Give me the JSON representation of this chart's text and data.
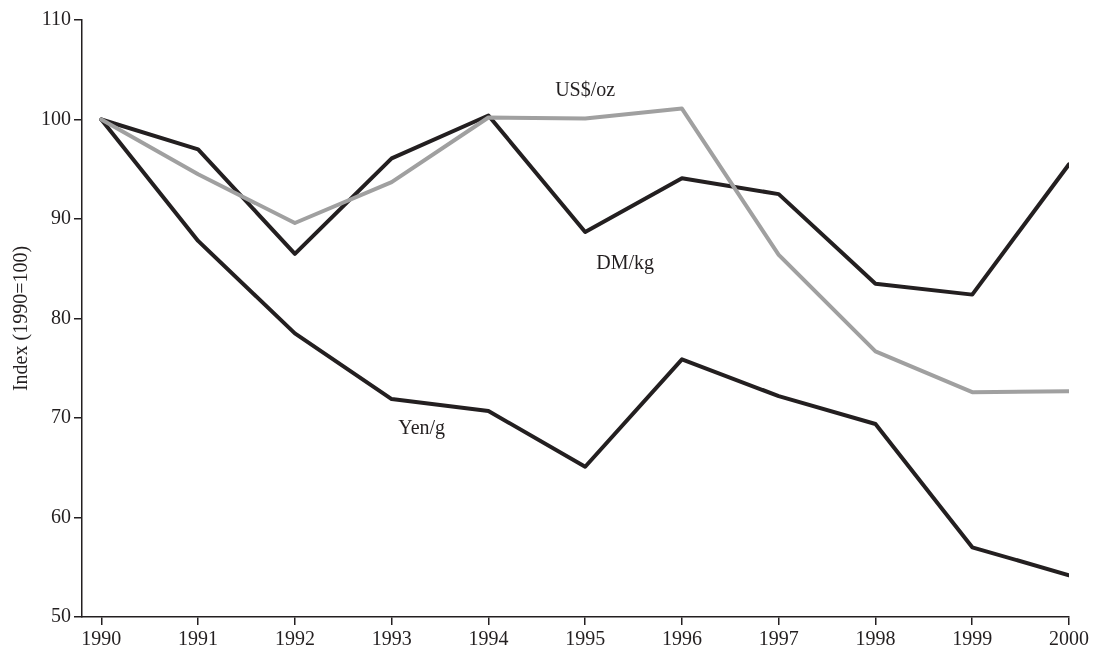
{
  "chart_data": {
    "type": "line",
    "ylabel": "Index (1990=100)",
    "x": [
      1990,
      1991,
      1992,
      1993,
      1994,
      1995,
      1996,
      1997,
      1998,
      1999,
      2000
    ],
    "series": [
      {
        "name": "US$/oz",
        "color": "#a0a0a0",
        "values": [
          100,
          94.5,
          89.6,
          93.7,
          100.2,
          100.1,
          101.1,
          86.4,
          76.7,
          72.6,
          72.7
        ]
      },
      {
        "name": "DM/kg",
        "color": "#231f20",
        "values": [
          100,
          97.0,
          86.5,
          96.1,
          100.4,
          88.7,
          94.1,
          92.5,
          83.5,
          82.4,
          95.5
        ]
      },
      {
        "name": "Yen/g",
        "color": "#231f20",
        "values": [
          100,
          87.8,
          78.5,
          71.9,
          70.7,
          65.1,
          75.9,
          72.2,
          69.4,
          57.0,
          54.2
        ]
      }
    ],
    "xlim": [
      1989.8,
      2000
    ],
    "xticks": [
      1990,
      1991,
      1992,
      1993,
      1994,
      1995,
      1996,
      1997,
      1998,
      1999,
      2000
    ],
    "ylim": [
      50,
      110
    ],
    "yticks": [
      50,
      60,
      70,
      80,
      90,
      100,
      110
    ],
    "grid": false,
    "legend": false,
    "marker": "none",
    "line_style": "solid"
  }
}
